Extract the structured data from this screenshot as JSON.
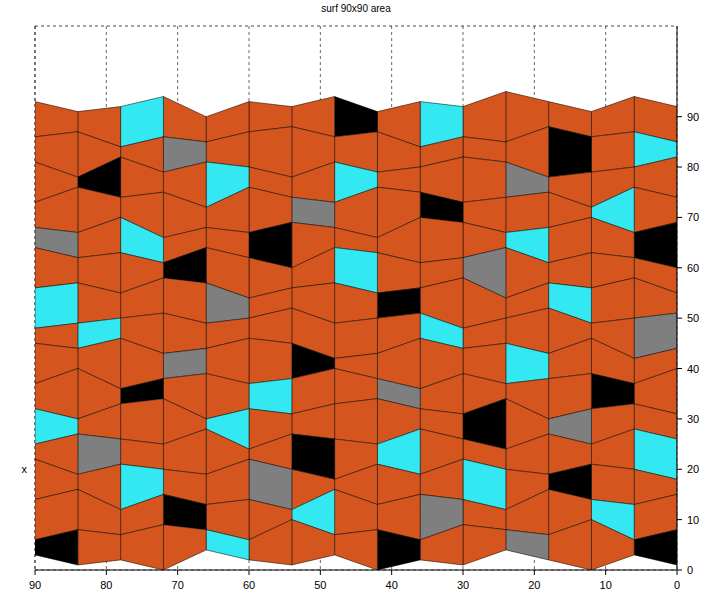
{
  "chart_data": {
    "type": "surface",
    "title": "surf 90x90 area",
    "annotations": [
      "x"
    ],
    "xlim": [
      90,
      0
    ],
    "xticks": [
      90,
      80,
      70,
      60,
      50,
      40,
      30,
      20,
      10,
      0
    ],
    "ylim": [
      0,
      108
    ],
    "yticks": [
      0,
      10,
      20,
      30,
      40,
      50,
      60,
      70,
      80,
      90
    ],
    "grid": true,
    "colors": [
      "#d4561e",
      "#33e8f0",
      "#7f7f7f",
      "#000000"
    ],
    "x": [
      0,
      6,
      12,
      18,
      24,
      30,
      36,
      42,
      48,
      54,
      60,
      66,
      72,
      78,
      84,
      90
    ],
    "y": [
      0,
      6,
      12,
      18,
      24,
      30,
      36,
      42,
      48,
      54,
      60,
      66,
      72,
      78,
      84,
      90
    ],
    "z": [
      [
        1,
        3,
        0,
        2,
        4,
        1,
        2,
        0,
        3,
        1,
        2,
        4,
        0,
        2,
        1,
        3
      ],
      [
        2,
        0,
        4,
        1,
        2,
        3,
        0,
        2,
        1,
        4,
        0,
        2,
        3,
        1,
        2,
        0
      ],
      [
        3,
        1,
        2,
        4,
        0,
        2,
        3,
        1,
        4,
        0,
        2,
        1,
        3,
        0,
        4,
        2
      ],
      [
        0,
        2,
        3,
        1,
        2,
        4,
        1,
        3,
        0,
        2,
        4,
        1,
        2,
        3,
        1,
        4
      ],
      [
        2,
        4,
        1,
        3,
        0,
        2,
        4,
        1,
        2,
        3,
        0,
        4,
        1,
        2,
        3,
        1
      ],
      [
        1,
        3,
        2,
        0,
        4,
        1,
        2,
        4,
        3,
        1,
        2,
        0,
        4,
        3,
        0,
        2
      ],
      [
        4,
        1,
        3,
        2,
        1,
        3,
        0,
        2,
        4,
        2,
        1,
        3,
        2,
        0,
        4,
        1
      ],
      [
        2,
        0,
        4,
        1,
        3,
        2,
        4,
        1,
        0,
        3,
        4,
        2,
        1,
        4,
        2,
        3
      ],
      [
        3,
        2,
        1,
        4,
        2,
        0,
        3,
        2,
        1,
        4,
        2,
        1,
        3,
        2,
        1,
        0
      ],
      [
        1,
        4,
        2,
        3,
        0,
        4,
        2,
        1,
        3,
        2,
        0,
        3,
        4,
        1,
        3,
        2
      ],
      [
        0,
        2,
        3,
        1,
        4,
        2,
        1,
        3,
        4,
        0,
        2,
        4,
        1,
        3,
        2,
        4
      ],
      [
        3,
        1,
        4,
        2,
        1,
        3,
        4,
        0,
        2,
        3,
        1,
        2,
        0,
        4,
        1,
        2
      ],
      [
        2,
        4,
        0,
        3,
        2,
        1,
        3,
        4,
        1,
        2,
        4,
        0,
        3,
        2,
        4,
        1
      ],
      [
        4,
        2,
        1,
        0,
        3,
        4,
        2,
        1,
        3,
        0,
        2,
        3,
        1,
        4,
        0,
        3
      ],
      [
        1,
        3,
        2,
        4,
        1,
        2,
        0,
        3,
        2,
        4,
        3,
        1,
        2,
        0,
        3,
        2
      ],
      [
        2,
        4,
        1,
        3,
        5,
        2,
        3,
        1,
        4,
        2,
        3,
        0,
        4,
        2,
        1,
        3
      ]
    ],
    "cells": [
      [
        3,
        0,
        0,
        2,
        0,
        0,
        3,
        0,
        0,
        0,
        1,
        0,
        0,
        0,
        3
      ],
      [
        0,
        1,
        0,
        0,
        0,
        2,
        0,
        0,
        1,
        0,
        0,
        3,
        0,
        0,
        0
      ],
      [
        0,
        0,
        3,
        0,
        1,
        0,
        0,
        0,
        0,
        2,
        0,
        0,
        1,
        0,
        0
      ],
      [
        1,
        0,
        0,
        0,
        0,
        0,
        1,
        0,
        3,
        0,
        0,
        0,
        0,
        2,
        0
      ],
      [
        0,
        0,
        2,
        0,
        3,
        0,
        0,
        0,
        0,
        0,
        1,
        0,
        0,
        0,
        1
      ],
      [
        0,
        3,
        0,
        0,
        0,
        0,
        2,
        0,
        0,
        1,
        0,
        0,
        3,
        0,
        0
      ],
      [
        0,
        0,
        0,
        1,
        0,
        0,
        0,
        0,
        3,
        0,
        0,
        2,
        0,
        0,
        0
      ],
      [
        2,
        0,
        0,
        0,
        0,
        1,
        0,
        0,
        0,
        0,
        0,
        0,
        0,
        1,
        0
      ],
      [
        0,
        0,
        1,
        0,
        0,
        0,
        3,
        0,
        0,
        0,
        2,
        0,
        0,
        0,
        1
      ],
      [
        0,
        0,
        0,
        0,
        2,
        0,
        0,
        1,
        0,
        0,
        0,
        3,
        0,
        0,
        0
      ],
      [
        3,
        0,
        0,
        1,
        0,
        0,
        0,
        0,
        0,
        3,
        0,
        0,
        1,
        0,
        2
      ],
      [
        0,
        1,
        0,
        0,
        0,
        3,
        0,
        0,
        2,
        0,
        0,
        0,
        0,
        0,
        0
      ],
      [
        0,
        0,
        0,
        2,
        0,
        0,
        0,
        1,
        0,
        0,
        1,
        0,
        0,
        3,
        0
      ],
      [
        1,
        0,
        3,
        0,
        0,
        0,
        0,
        0,
        0,
        0,
        0,
        2,
        0,
        0,
        0
      ],
      [
        0,
        0,
        0,
        0,
        0,
        1,
        0,
        3,
        0,
        0,
        0,
        0,
        1,
        0,
        0
      ]
    ]
  }
}
